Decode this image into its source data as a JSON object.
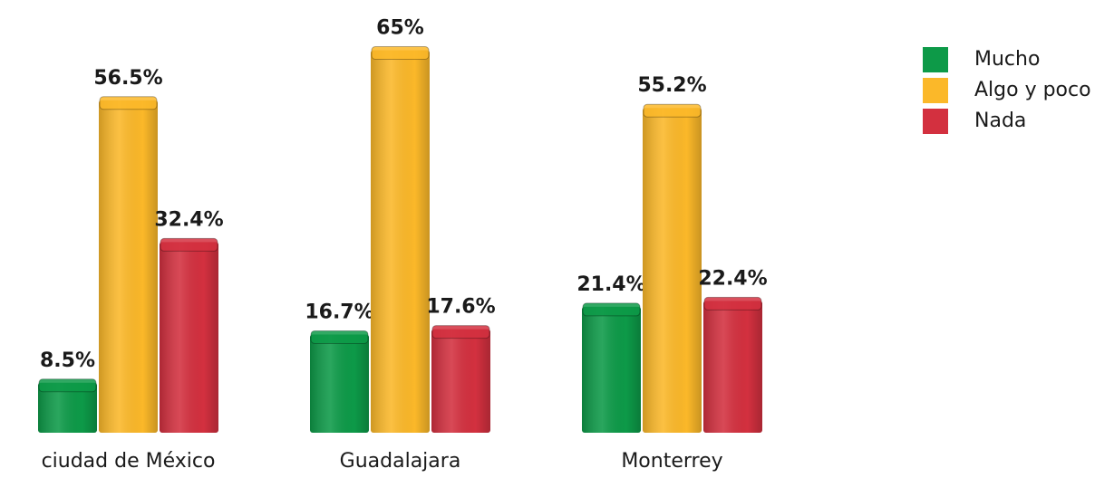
{
  "chart_data": {
    "type": "bar",
    "categories": [
      "ciudad de México",
      "Guadalajara",
      "Monterrey"
    ],
    "series": [
      {
        "name": "Mucho",
        "color": "#0d9a48",
        "values": [
          8.5,
          16.7,
          21.4
        ],
        "value_labels": [
          "8.5%",
          "16.7%",
          "21.4%"
        ]
      },
      {
        "name": "Algo y poco",
        "color": "#fbb829",
        "values": [
          56.5,
          65,
          55.2
        ],
        "value_labels": [
          "56.5%",
          "65%",
          "55.2%"
        ]
      },
      {
        "name": "Nada",
        "color": "#d3303f",
        "values": [
          32.4,
          17.6,
          22.4
        ],
        "value_labels": [
          "32.4%",
          "17.6%",
          "22.4%"
        ]
      }
    ],
    "legend": "top-right"
  }
}
